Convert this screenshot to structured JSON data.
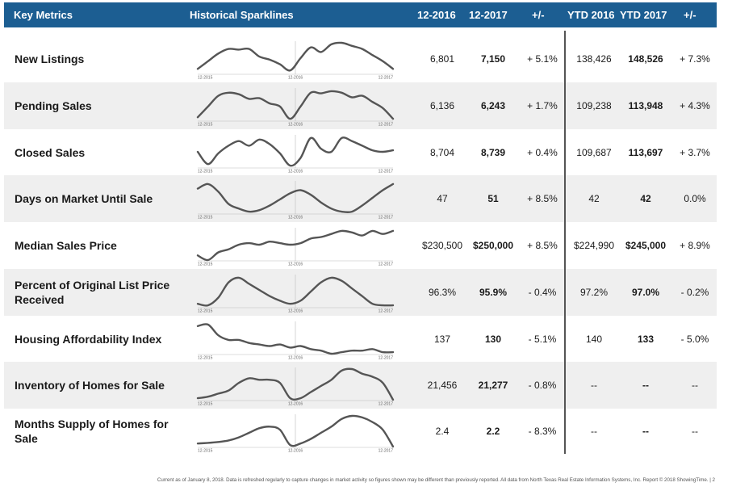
{
  "header": {
    "key_metrics": "Key Metrics",
    "sparklines": "Historical Sparklines",
    "col_2016": "12-2016",
    "col_2017": "12-2017",
    "col_change": "+/-",
    "col_ytd_2016": "YTD 2016",
    "col_ytd_2017": "YTD 2017",
    "col_ytd_change": "+/-"
  },
  "colors": {
    "header_bg": "#1c5e92",
    "shaded_row": "#efefef",
    "spark_line": "#555555"
  },
  "sparkline_axis": [
    "12-2015",
    "12-2016",
    "12-2017"
  ],
  "rows": [
    {
      "label": "New Listings",
      "v2016": "6,801",
      "v2017": "7,150",
      "change": "+ 5.1%",
      "ytd2016": "138,426",
      "ytd2017": "148,526",
      "ytd_change": "+ 7.3%",
      "spark": [
        0.15,
        0.4,
        0.65,
        0.8,
        0.78,
        0.8,
        0.55,
        0.45,
        0.3,
        0.1,
        0.5,
        0.85,
        0.7,
        0.95,
        1.0,
        0.9,
        0.8,
        0.6,
        0.4,
        0.15
      ]
    },
    {
      "label": "Pending Sales",
      "v2016": "6,136",
      "v2017": "6,243",
      "change": "+ 1.7%",
      "ytd2016": "109,238",
      "ytd2017": "113,948",
      "ytd_change": "+ 4.3%",
      "spark": [
        0.1,
        0.45,
        0.8,
        0.9,
        0.85,
        0.7,
        0.72,
        0.55,
        0.45,
        0.05,
        0.45,
        0.9,
        0.88,
        0.95,
        0.9,
        0.75,
        0.8,
        0.6,
        0.4,
        0.05
      ]
    },
    {
      "label": "Closed Sales",
      "v2016": "8,704",
      "v2017": "8,739",
      "change": "+ 0.4%",
      "ytd2016": "109,687",
      "ytd2017": "113,697",
      "ytd_change": "+ 3.7%",
      "spark": [
        0.5,
        0.1,
        0.45,
        0.7,
        0.85,
        0.7,
        0.9,
        0.75,
        0.45,
        0.05,
        0.3,
        0.95,
        0.6,
        0.5,
        0.95,
        0.85,
        0.7,
        0.55,
        0.5,
        0.55
      ]
    },
    {
      "label": "Days on Market Until Sale",
      "v2016": "47",
      "v2017": "51",
      "change": "+ 8.5%",
      "ytd2016": "42",
      "ytd2017": "42",
      "ytd_change": "0.0%",
      "spark": [
        0.8,
        0.95,
        0.7,
        0.3,
        0.15,
        0.05,
        0.1,
        0.25,
        0.45,
        0.65,
        0.75,
        0.6,
        0.35,
        0.15,
        0.05,
        0.05,
        0.25,
        0.5,
        0.75,
        0.95
      ]
    },
    {
      "label": "Median Sales Price",
      "v2016": "$230,500",
      "v2017": "$250,000",
      "change": "+ 8.5%",
      "ytd2016": "$224,990",
      "ytd2017": "$245,000",
      "ytd_change": "+ 8.9%",
      "spark": [
        0.15,
        0.0,
        0.25,
        0.35,
        0.5,
        0.55,
        0.5,
        0.6,
        0.55,
        0.5,
        0.55,
        0.7,
        0.75,
        0.85,
        0.95,
        0.9,
        0.8,
        0.95,
        0.85,
        0.95
      ]
    },
    {
      "label": "Percent of Original List Price Received",
      "v2016": "96.3%",
      "v2017": "95.9%",
      "change": "- 0.4%",
      "ytd2016": "97.2%",
      "ytd2017": "97.0%",
      "ytd_change": "- 0.2%",
      "spark": [
        0.1,
        0.05,
        0.3,
        0.8,
        0.95,
        0.75,
        0.55,
        0.35,
        0.2,
        0.1,
        0.2,
        0.5,
        0.8,
        0.95,
        0.85,
        0.6,
        0.35,
        0.1,
        0.05,
        0.05
      ]
    },
    {
      "label": "Housing Affordability Index",
      "v2016": "137",
      "v2017": "130",
      "change": "- 5.1%",
      "ytd2016": "140",
      "ytd2017": "133",
      "ytd_change": "- 5.0%",
      "spark": [
        0.9,
        0.95,
        0.6,
        0.45,
        0.45,
        0.35,
        0.3,
        0.25,
        0.3,
        0.2,
        0.25,
        0.15,
        0.1,
        0.0,
        0.05,
        0.1,
        0.1,
        0.15,
        0.05,
        0.05
      ]
    },
    {
      "label": "Inventory of Homes for Sale",
      "v2016": "21,456",
      "v2017": "21,277",
      "change": "- 0.8%",
      "ytd2016": "--",
      "ytd2017": "--",
      "ytd_change": "--",
      "spark": [
        0.05,
        0.1,
        0.2,
        0.3,
        0.55,
        0.7,
        0.65,
        0.65,
        0.55,
        0.05,
        0.05,
        0.25,
        0.45,
        0.65,
        0.95,
        1.0,
        0.85,
        0.75,
        0.55,
        0.0
      ]
    },
    {
      "label": "Months Supply of Homes for Sale",
      "v2016": "2.4",
      "v2017": "2.2",
      "change": "- 8.3%",
      "ytd2016": "--",
      "ytd2017": "--",
      "ytd_change": "--",
      "spark": [
        0.1,
        0.12,
        0.15,
        0.2,
        0.3,
        0.45,
        0.6,
        0.65,
        0.55,
        0.05,
        0.1,
        0.25,
        0.45,
        0.65,
        0.9,
        1.0,
        0.95,
        0.8,
        0.55,
        0.0
      ]
    }
  ],
  "footer": "Current as of January 8, 2018. Data is refreshed regularly to capture changes in market activity so figures shown may be different than previously reported. All data from North Texas Real Estate Information Systems, Inc. Report © 2018 ShowingTime.  |  2"
}
